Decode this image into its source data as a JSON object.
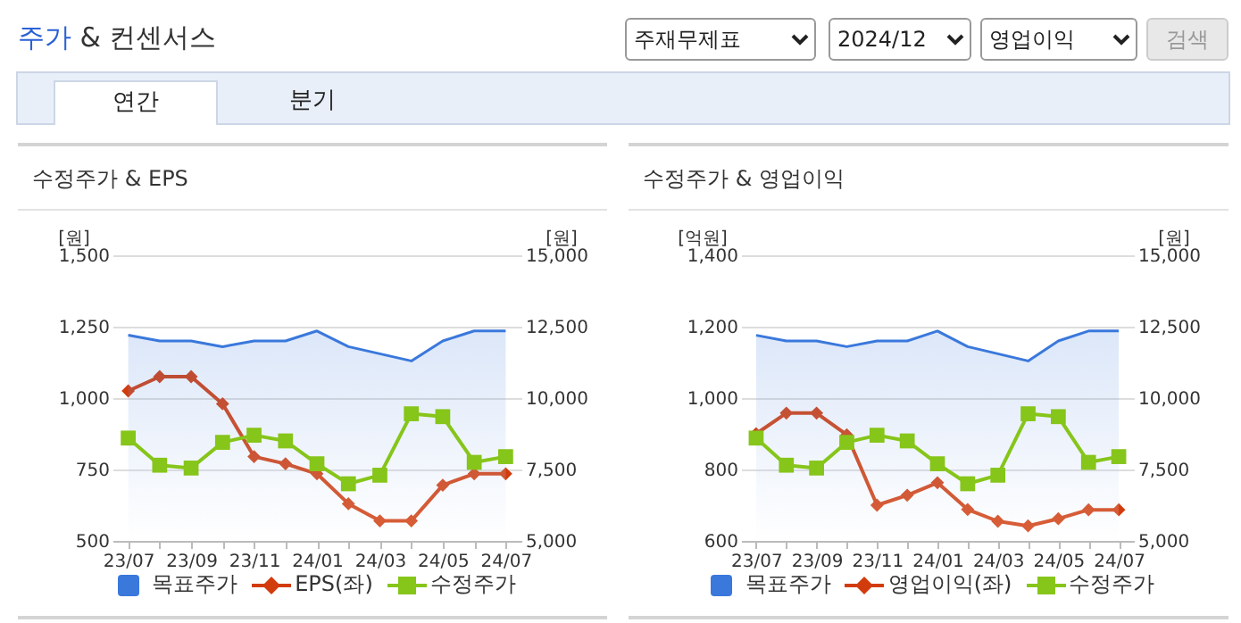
{
  "chart_data": [
    {
      "type": "other",
      "annotations": [
        "주가 & 컨센서스",
        "주재무제표",
        "2024/12",
        "영업이익",
        "검색",
        "연간",
        "분기"
      ]
    },
    {
      "type": "line",
      "title": "수정주가 & EPS",
      "ylabel": "[원]",
      "y2label": "[원]",
      "categories": [
        "23/07",
        null,
        "23/09",
        null,
        "23/11",
        null,
        "24/01",
        null,
        "24/03",
        null,
        "24/05",
        null,
        "24/07"
      ],
      "ylim": [
        500,
        1500
      ],
      "yticks": [
        500,
        750,
        {
          "value": 1000,
          "label": "1,000"
        },
        {
          "value": 1250,
          "label": "1,250"
        },
        {
          "value": 1500,
          "label": "1,500"
        }
      ],
      "y2lim": [
        5000,
        15000
      ],
      "y2ticks": [
        {
          "value": 5000,
          "label": "5,000"
        },
        {
          "value": 7500,
          "label": "7,500"
        },
        {
          "value": 10000,
          "label": "10,000"
        },
        {
          "value": 12500,
          "label": "12,500"
        },
        {
          "value": 15000,
          "label": "15,000"
        }
      ],
      "grid": "y",
      "legend": "bottom",
      "series": [
        {
          "name": "목표주가",
          "type": "area",
          "axis": "y2",
          "color": "#3a78dc",
          "marker": "none",
          "values": [
            12200,
            12000,
            12000,
            11800,
            12000,
            12000,
            12350,
            11800,
            11550,
            11300,
            12000,
            12350,
            12350
          ]
        },
        {
          "name": "EPS(좌)",
          "type": "line",
          "color": "#d23c0c",
          "marker": "diamond",
          "values": [
            1025,
            1075,
            1075,
            980,
            795,
            770,
            735,
            630,
            570,
            570,
            695,
            735,
            735
          ]
        },
        {
          "name": "수정주가",
          "type": "line",
          "axis": "y2",
          "color": "#86c51a",
          "marker": "square",
          "values": [
            8600,
            7650,
            7550,
            8450,
            8700,
            8500,
            7700,
            7000,
            7300,
            9450,
            9350,
            7750,
            7950
          ]
        }
      ]
    },
    {
      "type": "line",
      "title": "수정주가 & 영업이익",
      "ylabel": "[억원]",
      "y2label": "[원]",
      "categories": [
        "23/07",
        null,
        "23/09",
        null,
        "23/11",
        null,
        "24/01",
        null,
        "24/03",
        null,
        "24/05",
        null,
        "24/07"
      ],
      "ylim": [
        600,
        1400
      ],
      "yticks": [
        600,
        800,
        {
          "value": 1000,
          "label": "1,000"
        },
        {
          "value": 1200,
          "label": "1,200"
        },
        {
          "value": 1400,
          "label": "1,400"
        }
      ],
      "y2lim": [
        5000,
        15000
      ],
      "y2ticks": [
        {
          "value": 5000,
          "label": "5,000"
        },
        {
          "value": 7500,
          "label": "7,500"
        },
        {
          "value": 10000,
          "label": "10,000"
        },
        {
          "value": 12500,
          "label": "12,500"
        },
        {
          "value": 15000,
          "label": "15,000"
        }
      ],
      "grid": "y",
      "legend": "bottom",
      "series": [
        {
          "name": "목표주가",
          "type": "area",
          "axis": "y2",
          "color": "#3a78dc",
          "marker": "none",
          "values": [
            12200,
            12000,
            12000,
            11800,
            12000,
            12000,
            12350,
            11800,
            11550,
            11300,
            12000,
            12350,
            12350
          ]
        },
        {
          "name": "영업이익(좌)",
          "type": "line",
          "color": "#d23c0c",
          "marker": "diamond",
          "values": [
            900,
            958,
            958,
            897,
            700,
            728,
            763,
            688,
            655,
            642,
            662,
            687,
            687
          ]
        },
        {
          "name": "수정주가",
          "type": "line",
          "axis": "y2",
          "color": "#86c51a",
          "marker": "square",
          "values": [
            8600,
            7650,
            7550,
            8450,
            8700,
            8500,
            7700,
            7000,
            7300,
            9450,
            9350,
            7750,
            7950
          ]
        }
      ]
    }
  ]
}
